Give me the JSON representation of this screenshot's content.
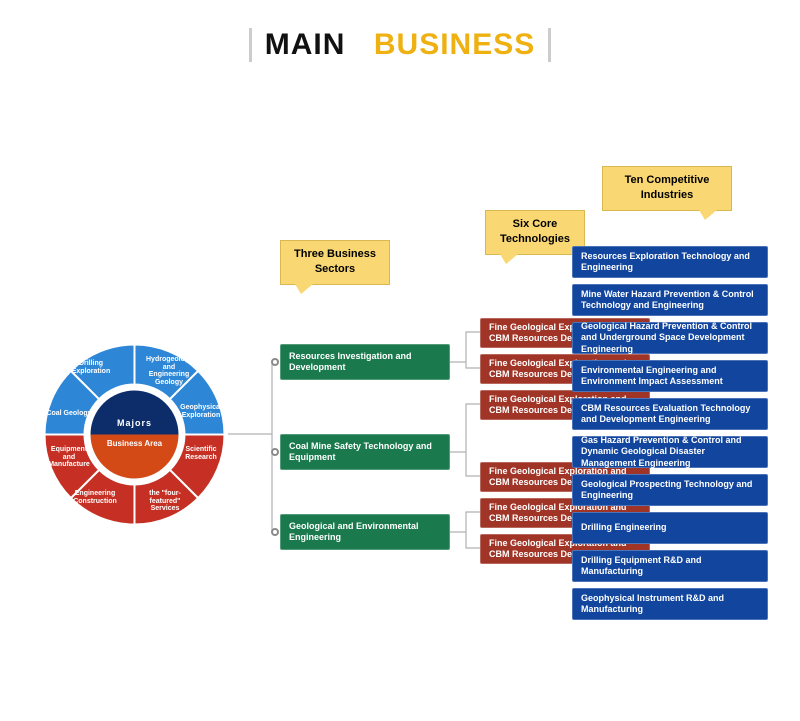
{
  "title": {
    "main": "MAIN",
    "sub": "BUSINESS",
    "main_color": "#111111",
    "sub_color": "#eeb111"
  },
  "callouts": {
    "sectors": {
      "text": "Three Business Sectors"
    },
    "techs": {
      "text": "Six Core Technologies"
    },
    "industries": {
      "text": "Ten Competitive Industries"
    }
  },
  "sectors": [
    {
      "label": "Resources Investigation and Development",
      "color": "#1a7a4d"
    },
    {
      "label": "Coal Mine Safety Technology and Equipment",
      "color": "#1a7a4d"
    },
    {
      "label": "Geological and Environmental Engineering",
      "color": "#1a7a4d"
    }
  ],
  "technologies": [
    {
      "label": "Fine Geological Exploration and CBM Resources Development",
      "color": "#a03426"
    },
    {
      "label": "Fine Geological Exploration and CBM Resources Development",
      "color": "#a03426"
    },
    {
      "label": "Fine Geological Exploration and CBM Resources Development",
      "color": "#a03426"
    },
    {
      "label": "Fine Geological Exploration and CBM Resources Development",
      "color": "#a03426"
    },
    {
      "label": "Fine Geological Exploration and CBM Resources Development",
      "color": "#a03426"
    },
    {
      "label": "Fine Geological Exploration and CBM Resources Development",
      "color": "#a03426"
    }
  ],
  "industries": [
    {
      "label": "Resources Exploration Technology and Engineering",
      "color": "#11459e"
    },
    {
      "label": "Mine Water Hazard Prevention & Control Technology and Engineering",
      "color": "#11459e"
    },
    {
      "label": "Geological Hazard Prevention & Control and Underground Space Development Engineering",
      "color": "#11459e"
    },
    {
      "label": "Environmental Engineering and Environment Impact Assessment",
      "color": "#11459e"
    },
    {
      "label": "CBM Resources Evaluation Technology and Development Engineering",
      "color": "#11459e"
    },
    {
      "label": "Gas Hazard Prevention & Control and Dynamic Geological Disaster Management Engineering",
      "color": "#11459e"
    },
    {
      "label": "Geological Prospecting Technology and Engineering",
      "color": "#11459e"
    },
    {
      "label": "Drilling Engineering",
      "color": "#11459e"
    },
    {
      "label": "Drilling Equipment R&D and Manufacturing",
      "color": "#11459e"
    },
    {
      "label": "Geophysical Instrument R&D and Manufacturing",
      "color": "#11459e"
    }
  ],
  "donut": {
    "center_top": {
      "label": "Majors",
      "bg": "#0d2d6a"
    },
    "center_bottom": {
      "label": "Business Area",
      "bg": "#d34a16"
    },
    "outer_colors": {
      "top": "#2d86d6",
      "bottom": "#c63024"
    },
    "top_segments": [
      "Coal Geology",
      "Drilling Exploration",
      "Hydrogeology and Engineering Geology",
      "Geophysical Exploration"
    ],
    "bottom_segments": [
      "Equipment and Manufacture",
      "Engineering Construction",
      "the \"four-featured\" Services",
      "Scientific Research"
    ]
  }
}
